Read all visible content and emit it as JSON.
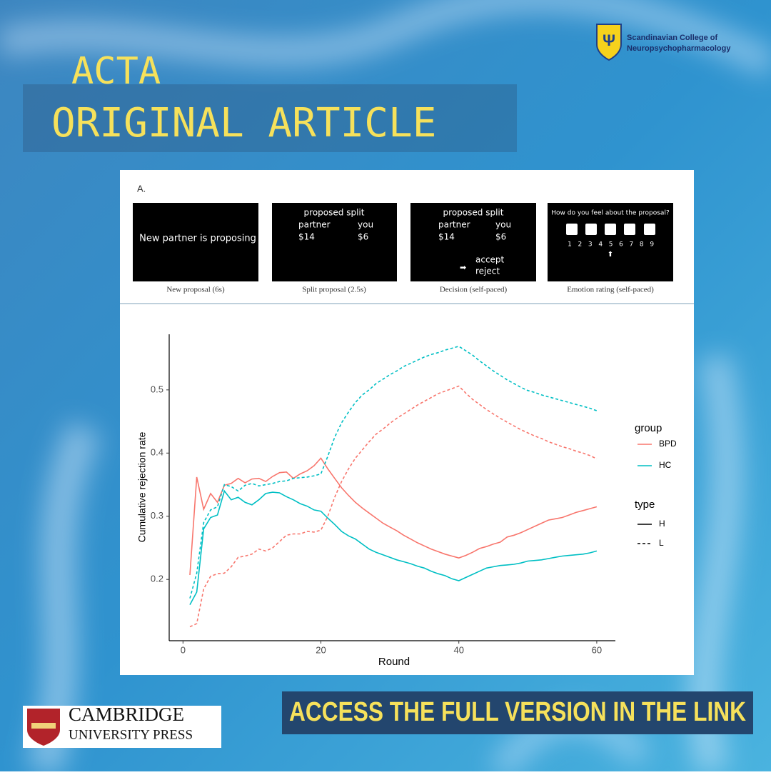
{
  "header": {
    "line1": "ACTA",
    "line2": "ORIGINAL ARTICLE"
  },
  "society": {
    "line1": "Scandinavian College of",
    "line2": "Neuropsychopharmacology"
  },
  "panel": {
    "label": "A.",
    "screens": [
      {
        "text": "New partner is proposing",
        "caption": "New proposal (6s)"
      },
      {
        "heading": "proposed split",
        "left": [
          "partner",
          "$14"
        ],
        "right": [
          "you",
          "$6"
        ],
        "caption": "Split proposal (2.5s)"
      },
      {
        "heading": "proposed split",
        "left": [
          "partner",
          "$14"
        ],
        "right": [
          "you",
          "$6"
        ],
        "options": [
          "accept",
          "reject"
        ],
        "caption": "Decision (self-paced)"
      },
      {
        "heading": "How do you feel about the proposal?",
        "scale": [
          1,
          2,
          3,
          4,
          5,
          6,
          7,
          8,
          9
        ],
        "caption": "Emotion rating (self-paced)"
      }
    ]
  },
  "chart_data": {
    "type": "line",
    "xlabel": "Round",
    "ylabel": "Cumulative rejection rate",
    "xlim": [
      -2,
      62.7
    ],
    "xticks": [
      0,
      20,
      40,
      60
    ],
    "ylim": [
      0.103,
      0.588
    ],
    "yticks": [
      0.2,
      0.3,
      0.4,
      0.5
    ],
    "grid": false,
    "legend_position": "right",
    "legend": {
      "group_title": "group",
      "groups": [
        {
          "name": "BPD",
          "color": "#f8766d"
        },
        {
          "name": "HC",
          "color": "#00bfc4"
        }
      ],
      "type_title": "type",
      "types": [
        {
          "name": "H",
          "dash": "solid"
        },
        {
          "name": "L",
          "dash": "dashed"
        }
      ]
    },
    "x": [
      1,
      2,
      3,
      4,
      5,
      6,
      7,
      8,
      9,
      10,
      11,
      12,
      13,
      14,
      15,
      16,
      17,
      18,
      19,
      20,
      21,
      22,
      23,
      24,
      25,
      26,
      27,
      28,
      29,
      30,
      31,
      32,
      33,
      34,
      35,
      36,
      37,
      38,
      39,
      40,
      41,
      42,
      43,
      44,
      45,
      46,
      47,
      48,
      49,
      50,
      51,
      52,
      53,
      54,
      55,
      56,
      57,
      58,
      59,
      60
    ],
    "series": [
      {
        "group": "BPD",
        "type": "H",
        "values": [
          0.207,
          0.362,
          0.311,
          0.336,
          0.322,
          0.349,
          0.352,
          0.36,
          0.353,
          0.359,
          0.36,
          0.355,
          0.363,
          0.369,
          0.37,
          0.36,
          0.367,
          0.372,
          0.38,
          0.392,
          0.375,
          0.36,
          0.345,
          0.333,
          0.322,
          0.313,
          0.305,
          0.297,
          0.289,
          0.283,
          0.277,
          0.27,
          0.264,
          0.258,
          0.253,
          0.248,
          0.244,
          0.24,
          0.237,
          0.234,
          0.238,
          0.243,
          0.249,
          0.252,
          0.256,
          0.259,
          0.267,
          0.27,
          0.274,
          0.279,
          0.284,
          0.289,
          0.294,
          0.296,
          0.298,
          0.302,
          0.306,
          0.309,
          0.312,
          0.315
        ]
      },
      {
        "group": "HC",
        "type": "H",
        "values": [
          0.16,
          0.18,
          0.28,
          0.298,
          0.302,
          0.34,
          0.326,
          0.33,
          0.322,
          0.318,
          0.326,
          0.336,
          0.338,
          0.337,
          0.331,
          0.326,
          0.32,
          0.316,
          0.31,
          0.308,
          0.297,
          0.287,
          0.276,
          0.269,
          0.264,
          0.256,
          0.248,
          0.243,
          0.239,
          0.235,
          0.231,
          0.228,
          0.225,
          0.221,
          0.218,
          0.213,
          0.209,
          0.206,
          0.201,
          0.198,
          0.203,
          0.208,
          0.213,
          0.218,
          0.22,
          0.222,
          0.223,
          0.224,
          0.226,
          0.229,
          0.23,
          0.231,
          0.233,
          0.235,
          0.237,
          0.238,
          0.239,
          0.24,
          0.242,
          0.245
        ]
      },
      {
        "group": "BPD",
        "type": "L",
        "values": [
          0.125,
          0.13,
          0.185,
          0.205,
          0.209,
          0.21,
          0.22,
          0.235,
          0.237,
          0.24,
          0.248,
          0.245,
          0.25,
          0.26,
          0.27,
          0.272,
          0.272,
          0.276,
          0.275,
          0.278,
          0.3,
          0.33,
          0.355,
          0.375,
          0.392,
          0.405,
          0.418,
          0.43,
          0.438,
          0.447,
          0.455,
          0.462,
          0.469,
          0.476,
          0.482,
          0.488,
          0.494,
          0.498,
          0.502,
          0.506,
          0.495,
          0.485,
          0.477,
          0.469,
          0.462,
          0.455,
          0.449,
          0.443,
          0.437,
          0.432,
          0.427,
          0.423,
          0.418,
          0.414,
          0.41,
          0.407,
          0.403,
          0.4,
          0.396,
          0.391
        ]
      },
      {
        "group": "HC",
        "type": "L",
        "values": [
          0.17,
          0.21,
          0.29,
          0.31,
          0.315,
          0.35,
          0.347,
          0.34,
          0.349,
          0.352,
          0.348,
          0.35,
          0.352,
          0.355,
          0.356,
          0.36,
          0.361,
          0.362,
          0.364,
          0.367,
          0.395,
          0.425,
          0.448,
          0.465,
          0.48,
          0.492,
          0.5,
          0.51,
          0.517,
          0.524,
          0.53,
          0.537,
          0.542,
          0.547,
          0.552,
          0.556,
          0.559,
          0.563,
          0.566,
          0.569,
          0.562,
          0.555,
          0.546,
          0.538,
          0.53,
          0.523,
          0.516,
          0.51,
          0.504,
          0.499,
          0.496,
          0.492,
          0.489,
          0.486,
          0.483,
          0.48,
          0.477,
          0.474,
          0.471,
          0.467
        ]
      }
    ]
  },
  "footer": {
    "cta": "ACCESS THE FULL VERSION IN THE LINK",
    "publisher1": "CAMBRIDGE",
    "publisher2": "UNIVERSITY PRESS"
  }
}
